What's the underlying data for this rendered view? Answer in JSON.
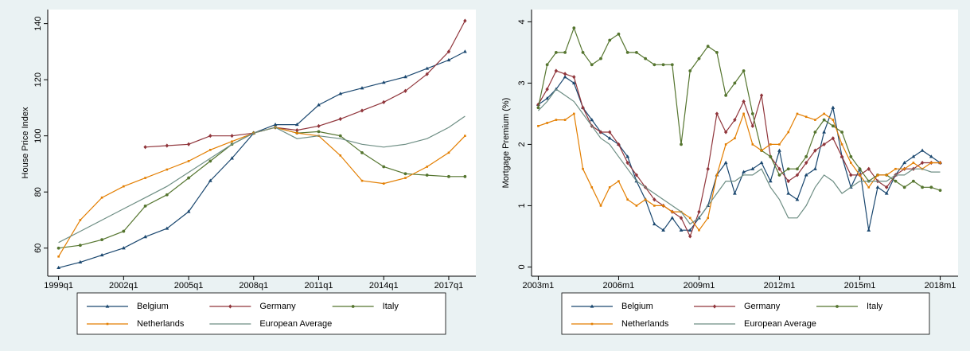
{
  "chart_data": [
    {
      "type": "line",
      "y_label": "House Price Index",
      "x": [
        "1999q1",
        "2000q1",
        "2001q1",
        "2002q1",
        "2003q1",
        "2004q1",
        "2005q1",
        "2006q1",
        "2007q1",
        "2008q1",
        "2009q1",
        "2010q1",
        "2011q1",
        "2012q1",
        "2013q1",
        "2014q1",
        "2015q1",
        "2016q1",
        "2017q1",
        "2017q4"
      ],
      "xlim": [
        "1998q3",
        "2018q2"
      ],
      "xticks": [
        "1999q1",
        "2002q1",
        "2005q1",
        "2008q1",
        "2011q1",
        "2014q1",
        "2017q1"
      ],
      "ylim": [
        50,
        145
      ],
      "yticks": [
        60,
        80,
        100,
        120,
        140
      ],
      "series": [
        {
          "name": "Belgium",
          "color": "#1a476f",
          "marker": "triangle",
          "values": [
            53,
            55,
            57.5,
            60,
            64,
            67,
            73,
            84,
            92,
            101,
            104,
            104,
            111,
            115,
            117,
            119,
            121,
            124,
            127,
            130
          ]
        },
        {
          "name": "Germany",
          "color": "#90353b",
          "marker": "diamond",
          "values": [
            null,
            null,
            null,
            null,
            96,
            96.5,
            97,
            100,
            100,
            101,
            103,
            102,
            103.5,
            106,
            109,
            112,
            116,
            122,
            130,
            141
          ]
        },
        {
          "name": "Italy",
          "color": "#55752f",
          "marker": "circle",
          "values": [
            60,
            61,
            63,
            66,
            75,
            79,
            85,
            91,
            97,
            101,
            103,
            101,
            101.5,
            100,
            94,
            89,
            86.5,
            86,
            85.5,
            85.5
          ]
        },
        {
          "name": "Netherlands",
          "color": "#e37e00",
          "marker": "square",
          "values": [
            57,
            70,
            78,
            82,
            85,
            88,
            91,
            95,
            98,
            101,
            103,
            101,
            100,
            93,
            84,
            83,
            85,
            89,
            94,
            100
          ]
        },
        {
          "name": "European Average",
          "color": "#6e8e84",
          "marker": "none",
          "values": [
            62,
            66,
            70,
            74,
            78,
            82,
            87,
            92,
            97,
            101,
            103,
            99,
            100,
            99,
            97,
            96,
            97,
            99,
            103,
            107
          ]
        }
      ]
    },
    {
      "type": "line",
      "y_label": "Mortgage Premium (%)",
      "x": [
        "2003m1",
        "2003m5",
        "2003m9",
        "2004m1",
        "2004m5",
        "2004m9",
        "2005m1",
        "2005m5",
        "2005m9",
        "2006m1",
        "2006m5",
        "2006m9",
        "2007m1",
        "2007m5",
        "2007m9",
        "2008m1",
        "2008m5",
        "2008m9",
        "2009m1",
        "2009m5",
        "2009m9",
        "2010m1",
        "2010m5",
        "2010m9",
        "2011m1",
        "2011m5",
        "2011m9",
        "2012m1",
        "2012m5",
        "2012m9",
        "2013m1",
        "2013m5",
        "2013m9",
        "2014m1",
        "2014m5",
        "2014m9",
        "2015m1",
        "2015m5",
        "2015m9",
        "2016m1",
        "2016m5",
        "2016m9",
        "2017m1",
        "2017m5",
        "2017m9",
        "2018m1"
      ],
      "xlim": [
        "2002m10",
        "2018m9"
      ],
      "xticks": [
        "2003m1",
        "2006m1",
        "2009m1",
        "2012m1",
        "2015m1",
        "2018m1"
      ],
      "ylim": [
        -0.15,
        4.2
      ],
      "yticks": [
        0,
        1,
        2,
        3,
        4
      ],
      "series": [
        {
          "name": "Belgium",
          "color": "#1a476f",
          "marker": "triangle",
          "values": [
            2.65,
            2.75,
            2.9,
            3.1,
            3.0,
            2.6,
            2.4,
            2.2,
            2.1,
            2.0,
            1.8,
            1.4,
            1.1,
            0.7,
            0.6,
            0.8,
            0.6,
            0.6,
            0.8,
            1.0,
            1.5,
            1.7,
            1.2,
            1.55,
            1.6,
            1.7,
            1.4,
            1.9,
            1.2,
            1.1,
            1.5,
            1.6,
            2.2,
            2.6,
            1.8,
            1.3,
            1.6,
            0.6,
            1.3,
            1.2,
            1.5,
            1.7,
            1.8,
            1.9,
            1.8,
            1.7
          ]
        },
        {
          "name": "Germany",
          "color": "#90353b",
          "marker": "diamond",
          "values": [
            2.65,
            2.9,
            3.2,
            3.15,
            3.1,
            2.6,
            2.3,
            2.2,
            2.2,
            2.0,
            1.7,
            1.5,
            1.3,
            1.1,
            1.0,
            0.9,
            0.8,
            0.5,
            0.9,
            1.6,
            2.5,
            2.2,
            2.4,
            2.7,
            2.3,
            2.8,
            1.8,
            1.6,
            1.4,
            1.5,
            1.7,
            1.9,
            2.0,
            2.1,
            1.8,
            1.5,
            1.5,
            1.6,
            1.4,
            1.3,
            1.5,
            1.6,
            1.6,
            1.7,
            1.7,
            1.7
          ]
        },
        {
          "name": "Italy",
          "color": "#55752f",
          "marker": "circle",
          "values": [
            2.6,
            3.3,
            3.5,
            3.5,
            3.9,
            3.5,
            3.3,
            3.4,
            3.7,
            3.8,
            3.5,
            3.5,
            3.4,
            3.3,
            3.3,
            3.3,
            2.0,
            3.2,
            3.4,
            3.6,
            3.5,
            2.8,
            3.0,
            3.2,
            2.5,
            1.9,
            1.8,
            1.5,
            1.6,
            1.6,
            1.8,
            2.2,
            2.4,
            2.3,
            2.2,
            1.8,
            1.6,
            1.4,
            1.5,
            1.5,
            1.4,
            1.3,
            1.4,
            1.3,
            1.3,
            1.25
          ]
        },
        {
          "name": "Netherlands",
          "color": "#e37e00",
          "marker": "square",
          "values": [
            2.3,
            2.35,
            2.4,
            2.4,
            2.5,
            1.6,
            1.3,
            1.0,
            1.3,
            1.4,
            1.1,
            1.0,
            1.1,
            1.0,
            1.0,
            0.9,
            0.9,
            0.8,
            0.6,
            0.8,
            1.5,
            2.0,
            2.1,
            2.5,
            2.0,
            1.9,
            2.0,
            2.0,
            2.2,
            2.5,
            2.45,
            2.4,
            2.5,
            2.4,
            2.0,
            1.7,
            1.5,
            1.3,
            1.5,
            1.5,
            1.6,
            1.6,
            1.7,
            1.6,
            1.7,
            1.7
          ]
        },
        {
          "name": "European Average",
          "color": "#6e8e84",
          "marker": "none",
          "values": [
            2.55,
            2.7,
            2.9,
            2.8,
            2.7,
            2.5,
            2.3,
            2.1,
            2.0,
            1.8,
            1.6,
            1.4,
            1.3,
            1.2,
            1.1,
            1.0,
            0.9,
            0.7,
            0.8,
            1.0,
            1.2,
            1.4,
            1.4,
            1.5,
            1.5,
            1.6,
            1.3,
            1.1,
            0.8,
            0.8,
            1.0,
            1.3,
            1.5,
            1.4,
            1.2,
            1.3,
            1.4,
            1.4,
            1.4,
            1.4,
            1.5,
            1.5,
            1.6,
            1.6,
            1.55,
            1.55
          ]
        }
      ]
    }
  ]
}
